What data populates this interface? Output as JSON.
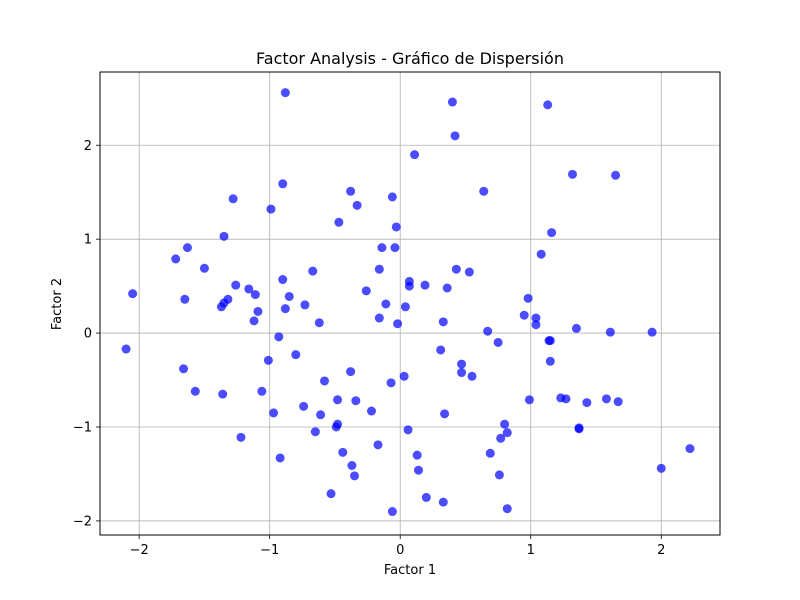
{
  "chart_data": {
    "type": "scatter",
    "title": "Factor Analysis - Gráfico de Dispersión",
    "xlabel": "Factor 1",
    "ylabel": "Factor 2",
    "xlim": [
      -2.3,
      2.45
    ],
    "ylim": [
      -2.15,
      2.78
    ],
    "x_ticks": [
      -2,
      -1,
      0,
      1,
      2
    ],
    "x_tick_labels": [
      "−2",
      "−1",
      "0",
      "1",
      "2"
    ],
    "y_ticks": [
      -2,
      -1,
      0,
      1,
      2
    ],
    "y_tick_labels": [
      "−2",
      "−1",
      "0",
      "1",
      "2"
    ],
    "grid": true,
    "point_color": "#0000ff",
    "point_opacity": 0.7,
    "points": [
      {
        "x": -0.88,
        "y": 2.56
      },
      {
        "x": 0.4,
        "y": 2.46
      },
      {
        "x": 1.13,
        "y": 2.43
      },
      {
        "x": 0.42,
        "y": 2.1
      },
      {
        "x": 0.11,
        "y": 1.9
      },
      {
        "x": 1.32,
        "y": 1.69
      },
      {
        "x": 1.65,
        "y": 1.68
      },
      {
        "x": -0.9,
        "y": 1.59
      },
      {
        "x": 0.64,
        "y": 1.51
      },
      {
        "x": -0.38,
        "y": 1.51
      },
      {
        "x": -0.06,
        "y": 1.45
      },
      {
        "x": -1.28,
        "y": 1.43
      },
      {
        "x": -0.33,
        "y": 1.36
      },
      {
        "x": -0.99,
        "y": 1.32
      },
      {
        "x": -0.47,
        "y": 1.18
      },
      {
        "x": -0.03,
        "y": 1.13
      },
      {
        "x": 1.16,
        "y": 1.07
      },
      {
        "x": -1.35,
        "y": 1.03
      },
      {
        "x": -1.63,
        "y": 0.91
      },
      {
        "x": -0.14,
        "y": 0.91
      },
      {
        "x": -0.04,
        "y": 0.91
      },
      {
        "x": 1.08,
        "y": 0.84
      },
      {
        "x": -1.72,
        "y": 0.79
      },
      {
        "x": -1.5,
        "y": 0.69
      },
      {
        "x": -0.16,
        "y": 0.68
      },
      {
        "x": 0.43,
        "y": 0.68
      },
      {
        "x": -0.67,
        "y": 0.66
      },
      {
        "x": 0.53,
        "y": 0.65
      },
      {
        "x": 0.07,
        "y": 0.55
      },
      {
        "x": -0.9,
        "y": 0.57
      },
      {
        "x": -1.26,
        "y": 0.51
      },
      {
        "x": 0.19,
        "y": 0.51
      },
      {
        "x": 0.07,
        "y": 0.5
      },
      {
        "x": -1.16,
        "y": 0.47
      },
      {
        "x": 0.36,
        "y": 0.48
      },
      {
        "x": -0.26,
        "y": 0.45
      },
      {
        "x": -2.05,
        "y": 0.42
      },
      {
        "x": -1.11,
        "y": 0.41
      },
      {
        "x": -0.85,
        "y": 0.39
      },
      {
        "x": -1.65,
        "y": 0.36
      },
      {
        "x": -1.32,
        "y": 0.36
      },
      {
        "x": 0.98,
        "y": 0.37
      },
      {
        "x": -1.35,
        "y": 0.32
      },
      {
        "x": -0.73,
        "y": 0.3
      },
      {
        "x": -0.11,
        "y": 0.31
      },
      {
        "x": 0.04,
        "y": 0.28
      },
      {
        "x": -1.37,
        "y": 0.28
      },
      {
        "x": -0.88,
        "y": 0.26
      },
      {
        "x": -1.09,
        "y": 0.23
      },
      {
        "x": 0.95,
        "y": 0.19
      },
      {
        "x": -0.16,
        "y": 0.16
      },
      {
        "x": 1.04,
        "y": 0.16
      },
      {
        "x": 0.33,
        "y": 0.12
      },
      {
        "x": -1.12,
        "y": 0.13
      },
      {
        "x": -0.62,
        "y": 0.11
      },
      {
        "x": -0.02,
        "y": 0.1
      },
      {
        "x": 1.04,
        "y": 0.09
      },
      {
        "x": 1.35,
        "y": 0.05
      },
      {
        "x": 0.67,
        "y": 0.02
      },
      {
        "x": 1.61,
        "y": 0.01
      },
      {
        "x": 1.93,
        "y": 0.01
      },
      {
        "x": -0.93,
        "y": -0.04
      },
      {
        "x": 1.14,
        "y": -0.08
      },
      {
        "x": 1.15,
        "y": -0.08
      },
      {
        "x": 0.75,
        "y": -0.1
      },
      {
        "x": -2.1,
        "y": -0.17
      },
      {
        "x": 0.31,
        "y": -0.18
      },
      {
        "x": -0.8,
        "y": -0.23
      },
      {
        "x": -1.01,
        "y": -0.29
      },
      {
        "x": 1.15,
        "y": -0.3
      },
      {
        "x": 0.47,
        "y": -0.33
      },
      {
        "x": -1.66,
        "y": -0.38
      },
      {
        "x": -0.38,
        "y": -0.41
      },
      {
        "x": 0.47,
        "y": -0.42
      },
      {
        "x": 0.55,
        "y": -0.46
      },
      {
        "x": 0.03,
        "y": -0.46
      },
      {
        "x": -0.58,
        "y": -0.51
      },
      {
        "x": -0.07,
        "y": -0.53
      },
      {
        "x": -1.57,
        "y": -0.62
      },
      {
        "x": -1.06,
        "y": -0.62
      },
      {
        "x": -1.36,
        "y": -0.65
      },
      {
        "x": 1.23,
        "y": -0.69
      },
      {
        "x": 1.27,
        "y": -0.7
      },
      {
        "x": 1.58,
        "y": -0.7
      },
      {
        "x": 0.99,
        "y": -0.71
      },
      {
        "x": -0.48,
        "y": -0.71
      },
      {
        "x": -0.34,
        "y": -0.72
      },
      {
        "x": 1.43,
        "y": -0.74
      },
      {
        "x": 1.67,
        "y": -0.73
      },
      {
        "x": -0.74,
        "y": -0.78
      },
      {
        "x": -0.22,
        "y": -0.83
      },
      {
        "x": -0.97,
        "y": -0.85
      },
      {
        "x": 0.34,
        "y": -0.86
      },
      {
        "x": -0.61,
        "y": -0.87
      },
      {
        "x": -0.48,
        "y": -0.97
      },
      {
        "x": 0.8,
        "y": -0.97
      },
      {
        "x": -0.49,
        "y": -1.0
      },
      {
        "x": 1.37,
        "y": -1.01
      },
      {
        "x": 1.37,
        "y": -1.02
      },
      {
        "x": 0.06,
        "y": -1.03
      },
      {
        "x": -0.65,
        "y": -1.05
      },
      {
        "x": 0.82,
        "y": -1.06
      },
      {
        "x": -1.22,
        "y": -1.11
      },
      {
        "x": 0.77,
        "y": -1.12
      },
      {
        "x": -0.17,
        "y": -1.19
      },
      {
        "x": -0.44,
        "y": -1.27
      },
      {
        "x": 0.69,
        "y": -1.28
      },
      {
        "x": 0.13,
        "y": -1.3
      },
      {
        "x": -0.92,
        "y": -1.33
      },
      {
        "x": -0.37,
        "y": -1.41
      },
      {
        "x": 2.0,
        "y": -1.44
      },
      {
        "x": 0.14,
        "y": -1.46
      },
      {
        "x": 0.76,
        "y": -1.51
      },
      {
        "x": -0.35,
        "y": -1.52
      },
      {
        "x": 2.22,
        "y": -1.23
      },
      {
        "x": -0.53,
        "y": -1.71
      },
      {
        "x": 0.2,
        "y": -1.75
      },
      {
        "x": 0.33,
        "y": -1.8
      },
      {
        "x": 0.82,
        "y": -1.87
      },
      {
        "x": -0.06,
        "y": -1.9
      }
    ]
  }
}
